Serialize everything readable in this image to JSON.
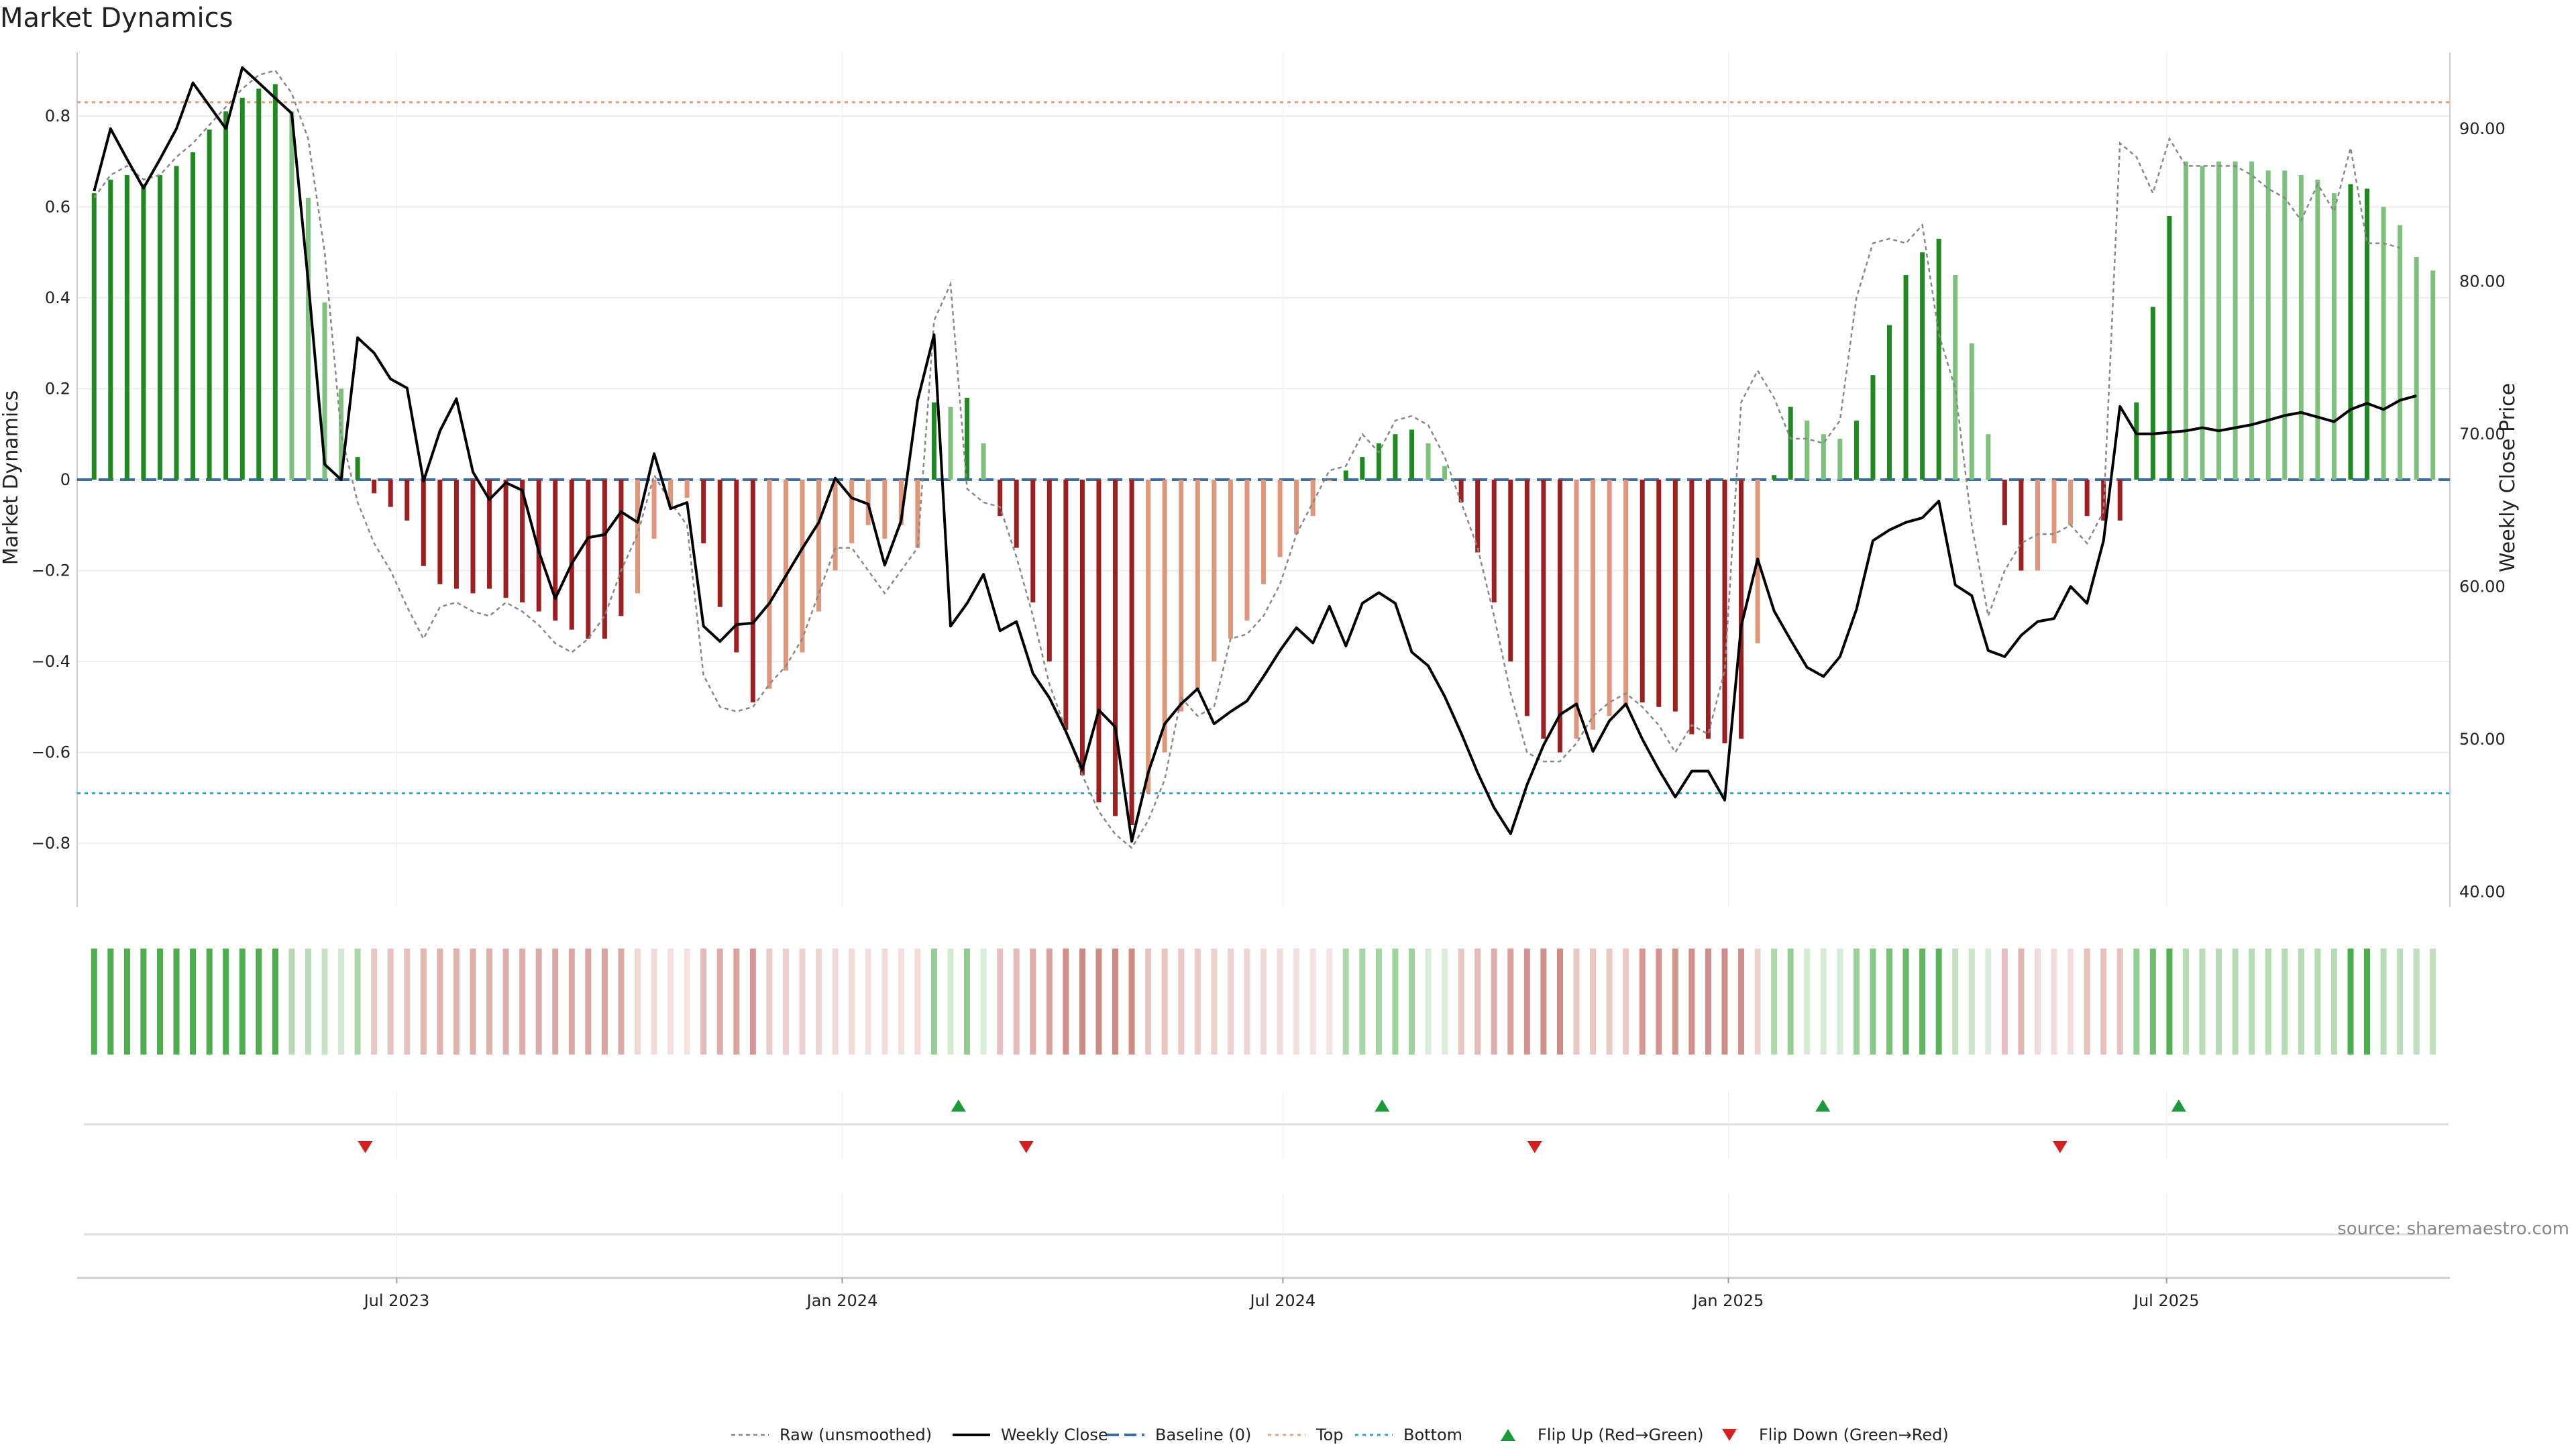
{
  "chart_data": {
    "type": "bar+line",
    "title": "Market Dynamics",
    "ylabel_left": "Market Dynamics",
    "ylabel_right": "Weekly Close Price",
    "ylim_left": [
      -0.94,
      0.94
    ],
    "ylim_right": [
      39,
      95
    ],
    "yticks_left": [
      "0.8",
      "0.6",
      "0.4",
      "0.2",
      "0",
      "−0.2",
      "−0.4",
      "−0.6",
      "−0.8"
    ],
    "yticks_left_values": [
      0.8,
      0.6,
      0.4,
      0.2,
      0,
      -0.2,
      -0.4,
      -0.6,
      -0.8
    ],
    "yticks_right": [
      "90.00",
      "80.00",
      "70.00",
      "60.00",
      "50.00",
      "40.00"
    ],
    "yticks_right_values": [
      90,
      80,
      70,
      60,
      50,
      40
    ],
    "x_range": [
      "2023-02-19",
      "2025-10-26"
    ],
    "xticks": [
      {
        "label": "Jul 2023",
        "date": "2023-07-01"
      },
      {
        "label": "Jan 2024",
        "date": "2024-01-01"
      },
      {
        "label": "Jul 2024",
        "date": "2024-07-01"
      },
      {
        "label": "Jan 2025",
        "date": "2025-01-01"
      },
      {
        "label": "Jul 2025",
        "date": "2025-07-01"
      }
    ],
    "baseline": 0,
    "top_line": 0.83,
    "bottom_line": -0.69,
    "grid": true,
    "bar_dates_range": [
      "2023-02-26",
      "2025-10-19"
    ],
    "bars": [
      0.63,
      0.66,
      0.67,
      0.65,
      0.67,
      0.69,
      0.72,
      0.77,
      0.81,
      0.84,
      0.86,
      0.87,
      0.81,
      0.62,
      0.39,
      0.2,
      0.05,
      -0.03,
      -0.06,
      -0.09,
      -0.19,
      -0.23,
      -0.24,
      -0.25,
      -0.24,
      -0.26,
      -0.27,
      -0.29,
      -0.31,
      -0.33,
      -0.35,
      -0.35,
      -0.3,
      -0.25,
      -0.13,
      -0.06,
      -0.04,
      -0.14,
      -0.28,
      -0.38,
      -0.49,
      -0.46,
      -0.42,
      -0.38,
      -0.29,
      -0.2,
      -0.14,
      -0.1,
      -0.13,
      -0.1,
      -0.15,
      0.17,
      0.16,
      0.18,
      0.08,
      -0.08,
      -0.15,
      -0.27,
      -0.4,
      -0.55,
      -0.65,
      -0.71,
      -0.74,
      -0.76,
      -0.69,
      -0.6,
      -0.51,
      -0.46,
      -0.4,
      -0.35,
      -0.31,
      -0.23,
      -0.17,
      -0.12,
      -0.08,
      0,
      0.02,
      0.05,
      0.08,
      0.1,
      0.11,
      0.08,
      0.03,
      -0.05,
      -0.16,
      -0.27,
      -0.4,
      -0.52,
      -0.57,
      -0.6,
      -0.57,
      -0.55,
      -0.52,
      -0.5,
      -0.49,
      -0.5,
      -0.51,
      -0.56,
      -0.57,
      -0.58,
      -0.57,
      -0.36,
      0.01,
      0.16,
      0.13,
      0.1,
      0.09,
      0.13,
      0.23,
      0.34,
      0.45,
      0.5,
      0.53,
      0.45,
      0.3,
      0.1,
      -0.1,
      -0.2,
      -0.2,
      -0.14,
      -0.1,
      -0.08,
      -0.09,
      -0.09,
      0.17,
      0.38,
      0.58,
      0.7,
      0.69,
      0.7,
      0.7,
      0.7,
      0.68,
      0.68,
      0.67,
      0.66,
      0.63,
      0.65,
      0.64,
      0.6,
      0.56,
      0.49,
      0.46
    ],
    "bar_states": [
      "SG",
      "SG",
      "SG",
      "SG",
      "SG",
      "SG",
      "SG",
      "SG",
      "SG",
      "SG",
      "SG",
      "SG",
      "WG",
      "WG",
      "WG",
      "WG",
      "SG",
      "SR",
      "SR",
      "SR",
      "SR",
      "SR",
      "SR",
      "SR",
      "SR",
      "SR",
      "SR",
      "SR",
      "SR",
      "SR",
      "SR",
      "SR",
      "SR",
      "WR",
      "WR",
      "WR",
      "WR",
      "SR",
      "SR",
      "SR",
      "SR",
      "WR",
      "WR",
      "WR",
      "WR",
      "WR",
      "WR",
      "WR",
      "WR",
      "WR",
      "WR",
      "SG",
      "WG",
      "SG",
      "WG",
      "SR",
      "SR",
      "SR",
      "SR",
      "SR",
      "SR",
      "SR",
      "SR",
      "SR",
      "WR",
      "WR",
      "WR",
      "WR",
      "WR",
      "WR",
      "WR",
      "WR",
      "WR",
      "WR",
      "WR",
      "WR",
      "SG",
      "SG",
      "SG",
      "SG",
      "SG",
      "WG",
      "WG",
      "SR",
      "SR",
      "SR",
      "SR",
      "SR",
      "SR",
      "SR",
      "WR",
      "WR",
      "WR",
      "WR",
      "SR",
      "SR",
      "SR",
      "SR",
      "SR",
      "SR",
      "SR",
      "WR",
      "SG",
      "SG",
      "WG",
      "WG",
      "WG",
      "SG",
      "SG",
      "SG",
      "SG",
      "SG",
      "SG",
      "WG",
      "WG",
      "WG",
      "SR",
      "SR",
      "WR",
      "WR",
      "WR",
      "SR",
      "SR",
      "SR",
      "SG",
      "SG",
      "SG",
      "WG",
      "WG",
      "WG",
      "WG",
      "WG",
      "WG",
      "WG",
      "WG",
      "WG",
      "WG",
      "SG",
      "SG",
      "WG",
      "WG",
      "WG",
      "WG"
    ],
    "state_colors": {
      "SG": "#1f8a1f",
      "WG": "#7cc27c",
      "SR": "#9e1f1f",
      "WR": "#e0967a"
    },
    "raw_series_name": "Raw (unsmoothed)",
    "raw": [
      0.62,
      0.67,
      0.69,
      0.66,
      0.67,
      0.71,
      0.74,
      0.78,
      0.82,
      0.86,
      0.89,
      0.9,
      0.85,
      0.75,
      0.5,
      0.1,
      -0.05,
      -0.14,
      -0.2,
      -0.28,
      -0.35,
      -0.28,
      -0.27,
      -0.29,
      -0.3,
      -0.27,
      -0.29,
      -0.32,
      -0.36,
      -0.38,
      -0.35,
      -0.3,
      -0.2,
      -0.12,
      0.01,
      -0.05,
      -0.1,
      -0.43,
      -0.5,
      -0.51,
      -0.5,
      -0.45,
      -0.41,
      -0.35,
      -0.25,
      -0.15,
      -0.15,
      -0.2,
      -0.25,
      -0.2,
      -0.15,
      0.35,
      0.43,
      -0.02,
      -0.05,
      -0.06,
      -0.17,
      -0.3,
      -0.45,
      -0.55,
      -0.65,
      -0.73,
      -0.78,
      -0.81,
      -0.75,
      -0.66,
      -0.48,
      -0.52,
      -0.5,
      -0.35,
      -0.34,
      -0.3,
      -0.23,
      -0.12,
      -0.05,
      0.02,
      0.03,
      0.1,
      0.06,
      0.13,
      0.14,
      0.12,
      0.05,
      -0.05,
      -0.15,
      -0.3,
      -0.47,
      -0.6,
      -0.62,
      -0.62,
      -0.58,
      -0.52,
      -0.49,
      -0.47,
      -0.5,
      -0.54,
      -0.6,
      -0.54,
      -0.56,
      -0.42,
      0.17,
      0.24,
      0.18,
      0.09,
      0.09,
      0.08,
      0.13,
      0.4,
      0.52,
      0.53,
      0.52,
      0.56,
      0.32,
      0.2,
      -0.1,
      -0.3,
      -0.2,
      -0.14,
      -0.12,
      -0.12,
      -0.1,
      -0.14,
      -0.07,
      0.74,
      0.71,
      0.63,
      0.75,
      0.69,
      0.69,
      0.69,
      0.69,
      0.67,
      0.64,
      0.62,
      0.57,
      0.65,
      0.59,
      0.73,
      0.52,
      0.52,
      0.51
    ],
    "close_series_name": "Weekly Close",
    "close": [
      85.9,
      90.0,
      88.0,
      86.1,
      88.0,
      90.0,
      93.0,
      91.5,
      90.0,
      94.0,
      93.0,
      92.0,
      91.0,
      80.0,
      68.0,
      67.0,
      76.3,
      75.3,
      73.6,
      73.0,
      66.9,
      70.2,
      72.3,
      67.5,
      65.7,
      66.8,
      66.3,
      62.3,
      59.2,
      61.5,
      63.2,
      63.4,
      64.9,
      64.2,
      68.7,
      65.1,
      65.5,
      57.4,
      56.4,
      57.5,
      57.6,
      58.9,
      60.7,
      62.5,
      64.2,
      67.1,
      65.8,
      65.4,
      61.4,
      64.3,
      72.2,
      76.5,
      57.4,
      58.9,
      60.8,
      57.1,
      57.7,
      54.3,
      52.7,
      50.5,
      48.0,
      51.9,
      50.8,
      43.3,
      47.8,
      51.0,
      52.3,
      53.3,
      51.0,
      51.8,
      52.5,
      54.1,
      55.8,
      57.3,
      56.3,
      58.7,
      56.1,
      58.9,
      59.6,
      58.9,
      55.7,
      54.8,
      52.8,
      50.4,
      47.8,
      45.5,
      43.8,
      47.0,
      49.6,
      51.6,
      52.3,
      49.2,
      51.2,
      52.3,
      50.0,
      48.0,
      46.2,
      47.9,
      47.9,
      46.0,
      57.4,
      61.8,
      58.4,
      56.5,
      54.7,
      54.1,
      55.4,
      58.5,
      63.0,
      63.7,
      64.2,
      64.5,
      65.6,
      60.1,
      59.4,
      55.8,
      55.4,
      56.8,
      57.7,
      57.9,
      60.0,
      58.9,
      63.0,
      71.8,
      70.0,
      70.0,
      70.1,
      70.2,
      70.4,
      70.2,
      70.4,
      70.6,
      70.9,
      71.2,
      71.4,
      71.1,
      70.8,
      71.6,
      72.0,
      71.6,
      72.2,
      72.5
    ],
    "baseline_name": "Baseline (0)",
    "top_name": "Top",
    "bottom_name": "Bottom",
    "flip_up_name": "Flip Up (Red→Green)",
    "flip_down_name": "Flip Down (Green→Red)",
    "flip_up_dates": [
      "2024-02-18",
      "2024-08-11",
      "2025-02-09",
      "2025-07-06"
    ],
    "flip_down_dates": [
      "2023-06-18",
      "2024-03-17",
      "2024-10-13",
      "2025-05-18"
    ],
    "source": "source: sharemaestro.com"
  },
  "colors": {
    "strong_green": "#1f8a1f",
    "weak_green": "#7cc27c",
    "strong_red": "#9e1f1f",
    "weak_red": "#e0967a",
    "close_line": "#000000",
    "raw_line": "#888888",
    "baseline": "#3b6ea8",
    "top": "#e8a07a",
    "bottom": "#2aa8c4",
    "flip_up": "#1a9a3a",
    "flip_down": "#d42020",
    "grid": "#ececec",
    "axis": "#cccccc"
  }
}
